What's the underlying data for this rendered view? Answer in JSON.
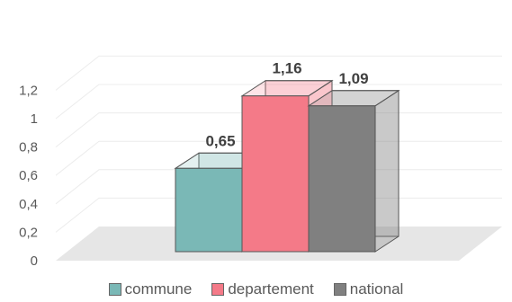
{
  "chart_data": {
    "type": "bar",
    "style": "3d",
    "categories": [
      "commune",
      "departement",
      "national"
    ],
    "values": [
      0.65,
      1.16,
      1.09
    ],
    "data_labels": [
      "0,65",
      "1,16",
      "1,09"
    ],
    "colors": [
      "#7ab8b6",
      "#f47a88",
      "#808080"
    ],
    "ylim": [
      0,
      1.2
    ],
    "yticks": [
      "0",
      "0,2",
      "0,4",
      "0,6",
      "0,8",
      "1",
      "1,2"
    ],
    "grid": true,
    "legend_position": "bottom"
  }
}
